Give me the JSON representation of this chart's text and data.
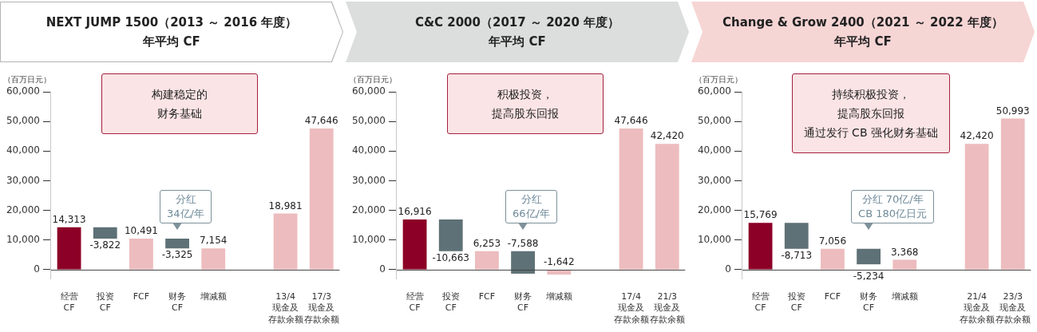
{
  "chart_data": [
    {
      "type": "bar",
      "title": "NEXT JUMP 1500（2013 ～ 2016 年度）",
      "subtitle": "年平均 CF",
      "ylabel": "（百万日元）",
      "categories": [
        "经营CF",
        "投资CF",
        "FCF",
        "财务CF",
        "增减额",
        null,
        "13/4现金及存款余额",
        "17/3现金及存款余额"
      ],
      "values": [
        14313,
        -3822,
        10491,
        -3325,
        7154,
        null,
        18981,
        47646
      ],
      "base": [
        0,
        14313,
        0,
        10491,
        0,
        null,
        0,
        0
      ],
      "colors": [
        "#8c0027",
        "#5e7176",
        "#edbcbe",
        "#5e7176",
        "#edbcbe",
        "#edbcbe",
        "#edbcbe",
        "#edbcbe"
      ],
      "value_labels": [
        "14,313",
        "-3,822",
        "10,491",
        "-3,325",
        "7,154",
        null,
        "18,981",
        "47,646"
      ],
      "ylim": [
        -3000,
        60000
      ],
      "yticks": [
        {
          "value": 0,
          "label": "0"
        },
        {
          "value": 10000,
          "label": "10,000"
        },
        {
          "value": 20000,
          "label": "20,000"
        },
        {
          "value": 30000,
          "label": "30,000"
        },
        {
          "value": 40000,
          "label": "40,000"
        },
        {
          "value": 50000,
          "label": "50,000"
        },
        {
          "value": 60000,
          "label": "60,000"
        }
      ],
      "annotations": [
        "构建稳定的",
        "财务基础",
        "分红\n34亿/年"
      ],
      "grid": false,
      "legend": false
    },
    {
      "type": "bar",
      "title": "C&C 2000（2017 ～ 2020 年度）",
      "subtitle": "年平均 CF",
      "ylabel": "（百万日元）",
      "categories": [
        "经营CF",
        "投资CF",
        "FCF",
        "财务CF",
        "增减额",
        null,
        "17/4现金及存款余额",
        "21/3现金及存款余额"
      ],
      "values": [
        16916,
        -10663,
        6253,
        -7588,
        -1642,
        null,
        47646,
        42420
      ],
      "base": [
        0,
        16916,
        0,
        6253,
        0,
        null,
        0,
        0
      ],
      "colors": [
        "#8c0027",
        "#5e7176",
        "#edbcbe",
        "#5e7176",
        "#edbcbe",
        "#edbcbe",
        "#edbcbe",
        "#edbcbe"
      ],
      "value_labels": [
        "16,916",
        "-10,663",
        "6,253",
        "-7,588",
        "-1,642",
        null,
        "47,646",
        "42,420"
      ],
      "ylim": [
        -3000,
        60000
      ],
      "yticks": [
        {
          "value": 0,
          "label": "0"
        },
        {
          "value": 10000,
          "label": "10,000"
        },
        {
          "value": 20000,
          "label": "20,000"
        },
        {
          "value": 30000,
          "label": "30,000"
        },
        {
          "value": 40000,
          "label": "40,000"
        },
        {
          "value": 50000,
          "label": "50,000"
        },
        {
          "value": 60000,
          "label": "60,000"
        }
      ],
      "annotations": [
        "积极投资，",
        "提高股东回报",
        "分红\n66亿/年"
      ],
      "grid": false,
      "legend": false
    },
    {
      "type": "bar",
      "title": "Change & Grow 2400（2021 ～ 2022 年度）",
      "subtitle": "年平均 CF",
      "ylabel": "（百万日元）",
      "categories": [
        "经营CF",
        "投资CF",
        "FCF",
        "财务CF",
        "增减额",
        null,
        "21/4现金及存款余额",
        "23/3现金及存款余额"
      ],
      "values": [
        15769,
        -8713,
        7056,
        -5234,
        3368,
        null,
        42420,
        50993
      ],
      "base": [
        0,
        15769,
        0,
        7056,
        0,
        null,
        0,
        0
      ],
      "colors": [
        "#8c0027",
        "#5e7176",
        "#edbcbe",
        "#5e7176",
        "#edbcbe",
        "#edbcbe",
        "#edbcbe",
        "#edbcbe"
      ],
      "value_labels": [
        "15,769",
        "-8,713",
        "7,056",
        "-5,234",
        "3,368",
        null,
        "42,420",
        "50,993"
      ],
      "ylim": [
        -3000,
        60000
      ],
      "yticks": [
        {
          "value": 0,
          "label": "0"
        },
        {
          "value": 10000,
          "label": "10,000"
        },
        {
          "value": 20000,
          "label": "20,000"
        },
        {
          "value": 30000,
          "label": "30,000"
        },
        {
          "value": 40000,
          "label": "40,000"
        },
        {
          "value": 50000,
          "label": "50,000"
        },
        {
          "value": 60000,
          "label": "60,000"
        }
      ],
      "annotations": [
        "持续积极投资，",
        "提高股东回报",
        "通过发行 CB 强化财务基础",
        "分红 70亿/年\nCB 180亿日元"
      ],
      "grid": false,
      "legend": false
    }
  ]
}
